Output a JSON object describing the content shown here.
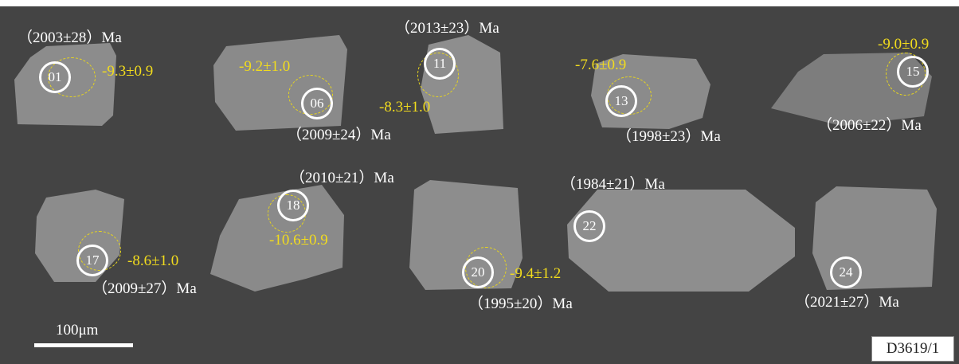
{
  "figure": {
    "scale_bar_label": "100μm",
    "sample_id": "D3619/1",
    "colors": {
      "background": "#444444",
      "spot_circle": "#ffffff",
      "o_isotope_text": "#f2dc1d"
    }
  },
  "grains": [
    {
      "spot": "01",
      "age": "（2003±28）Ma",
      "d18o": "-9.3±0.9"
    },
    {
      "spot": "06",
      "age": "（2009±24）Ma",
      "d18o": "-9.2±1.0"
    },
    {
      "spot": "11",
      "age": "（2013±23）Ma",
      "d18o": "-8.3±1.0"
    },
    {
      "spot": "13",
      "age": "（1998±23）Ma",
      "d18o": "-7.6±0.9"
    },
    {
      "spot": "15",
      "age": "（2006±22）Ma",
      "d18o": "-9.0±0.9"
    },
    {
      "spot": "17",
      "age": "（2009±27）Ma",
      "d18o": "-8.6±1.0"
    },
    {
      "spot": "18",
      "age": "（2010±21）Ma",
      "d18o": "-10.6±0.9"
    },
    {
      "spot": "20",
      "age": "（1995±20）Ma",
      "d18o": "-9.4±1.2"
    },
    {
      "spot": "22",
      "age": "（1984±21）Ma",
      "d18o": ""
    },
    {
      "spot": "24",
      "age": "（2021±27）Ma",
      "d18o": ""
    }
  ]
}
